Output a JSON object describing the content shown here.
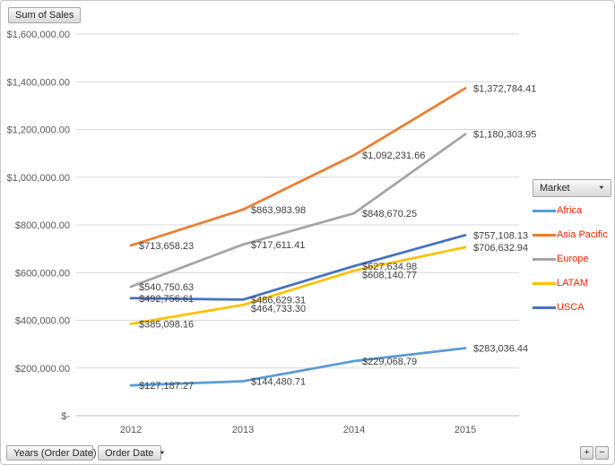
{
  "chart": {
    "value_field_button": "Sum of Sales",
    "axis_field_buttons": {
      "years": "Years (Order Date)",
      "order_date": "Order Date"
    },
    "legend": {
      "field_button": "Market"
    },
    "expand_button": "+",
    "collapse_button": "−",
    "colors": {
      "gridline": "#D9D9D9",
      "axis_line": "#BFBFBF",
      "tick_text": "#595959",
      "data_label_text": "#404040",
      "legend_text": "#FF2200"
    }
  },
  "chart_data": {
    "type": "line",
    "title": "",
    "xlabel": "",
    "ylabel": "",
    "grid": true,
    "legend_position": "right",
    "x": [
      "2012",
      "2013",
      "2014",
      "2015"
    ],
    "ylim": [
      0,
      1600000
    ],
    "y_tick_labels": [
      "$1,600,000.00",
      "$1,400,000.00",
      "$1,200,000.00",
      "$1,000,000.00",
      "$800,000.00",
      "$600,000.00",
      "$400,000.00",
      "$200,000.00",
      "$-"
    ],
    "series": [
      {
        "name": "Africa",
        "color": "#5B9BD5",
        "values": [
          127187.27,
          144480.71,
          229068.79,
          283036.44
        ],
        "labels": [
          "$127,187.27",
          "$144,480.71",
          "$229,068.79",
          "$283,036.44"
        ]
      },
      {
        "name": "Asia Pacific",
        "color": "#ED7D31",
        "values": [
          713658.23,
          863983.98,
          1092231.66,
          1372784.41
        ],
        "labels": [
          "$713,658.23",
          "$863,983.98",
          "$1,092,231.66",
          "$1,372,784.41"
        ]
      },
      {
        "name": "Europe",
        "color": "#A5A5A5",
        "values": [
          540750.63,
          717611.41,
          848670.25,
          1180303.95
        ],
        "labels": [
          "$540,750.63",
          "$717,611.41",
          "$848,670.25",
          "$1,180,303.95"
        ]
      },
      {
        "name": "LATAM",
        "color": "#FFC000",
        "values": [
          385098.16,
          464733.3,
          608140.77,
          706632.94
        ],
        "labels": [
          "$385,098.16",
          "$464,733.30",
          "$608,140.77",
          "$706,632.94"
        ]
      },
      {
        "name": "USCA",
        "color": "#4472C4",
        "values": [
          492756.61,
          486629.31,
          627634.98,
          757108.13
        ],
        "labels": [
          "$492,756.61",
          "$486,629.31",
          "$627,634.98",
          "$757,108.13"
        ]
      }
    ]
  }
}
